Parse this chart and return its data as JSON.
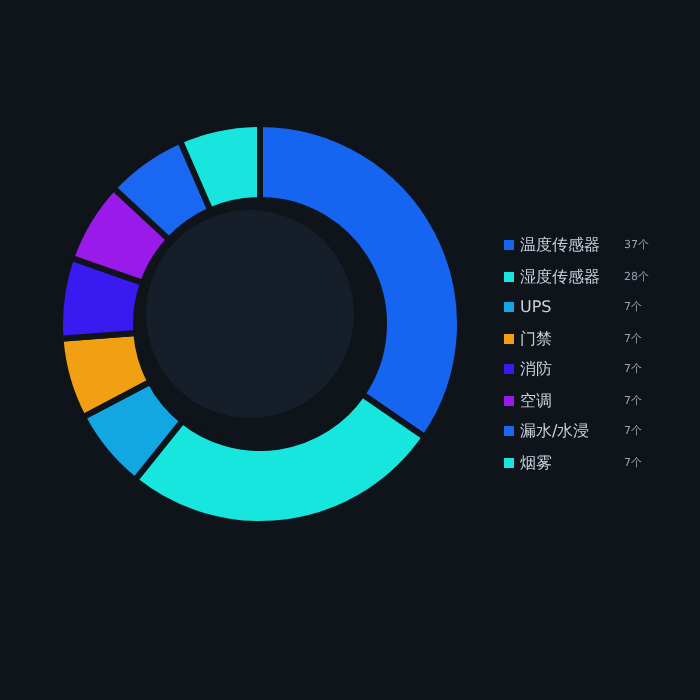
{
  "chart_data": {
    "type": "donut",
    "categories": [
      "温度传感器",
      "湿度传感器",
      "UPS",
      "门禁",
      "消防",
      "空调",
      "漏水/水浸",
      "烟雾"
    ],
    "values": [
      37,
      28,
      7,
      7,
      7,
      7,
      7,
      7
    ],
    "value_labels": [
      "37个",
      "28个",
      "7个",
      "7个",
      "7个",
      "7个",
      "7个",
      "7个"
    ],
    "colors": [
      "#1565f0",
      "#16e6de",
      "#12a6e2",
      "#f0a012",
      "#3a1af0",
      "#9a1aea",
      "#1a68f2",
      "#18e6de"
    ],
    "legend": "right"
  }
}
